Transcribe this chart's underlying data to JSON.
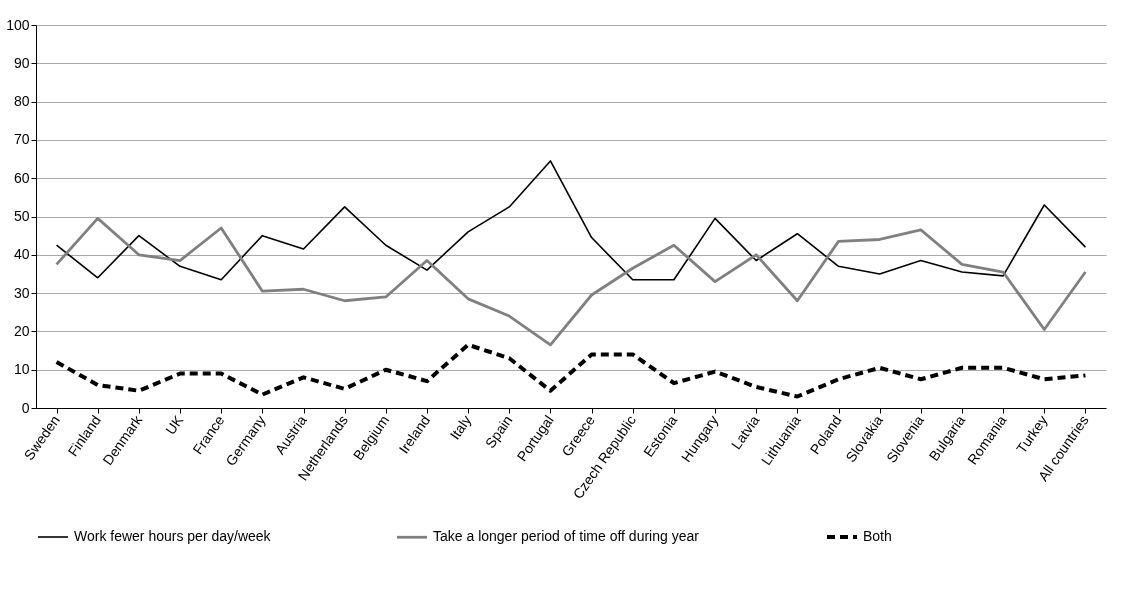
{
  "chart_data": {
    "type": "line",
    "categories": [
      "Sweden",
      "Finland",
      "Denmark",
      "UK",
      "France",
      "Germany",
      "Austria",
      "Netherlands",
      "Belgium",
      "Ireland",
      "Italy",
      "Spain",
      "Portugal",
      "Greece",
      "Czech Republic",
      "Estonia",
      "Hungary",
      "Latvia",
      "Lithuania",
      "Poland",
      "Slovakia",
      "Slovenia",
      "Bulgaria",
      "Romania",
      "Turkey",
      "All countries"
    ],
    "series": [
      {
        "name": "Work fewer hours per day/week",
        "color": "#000000",
        "line_style": "solid",
        "values": [
          42.5,
          34,
          45,
          37,
          33.5,
          45,
          41.5,
          52.5,
          42.5,
          36,
          46,
          52.5,
          64.5,
          44.5,
          33.5,
          33.5,
          49.5,
          38.5,
          45.5,
          37,
          35,
          38.5,
          35.5,
          34.5,
          53,
          42
        ]
      },
      {
        "name": "Take a longer period of time off during year",
        "color": "#808080",
        "line_style": "solid",
        "values": [
          37.5,
          49.5,
          40,
          38.5,
          47,
          30.5,
          31,
          28,
          29,
          38.5,
          28.5,
          24,
          16.5,
          29.5,
          36.5,
          42.5,
          33,
          40,
          28,
          43.5,
          44,
          46.5,
          37.5,
          35.5,
          20.5,
          35.5
        ]
      },
      {
        "name": "Both",
        "color": "#000000",
        "line_style": "dashed",
        "values": [
          12,
          6,
          4.5,
          9,
          9,
          3.5,
          8,
          5,
          10,
          7,
          16.5,
          13,
          4.5,
          14,
          14,
          6.5,
          9.5,
          5.5,
          3,
          7.5,
          10.5,
          7.5,
          10.5,
          10.5,
          7.5,
          8.5
        ]
      }
    ],
    "ylim": [
      0,
      100
    ],
    "yticks": [
      0,
      10,
      20,
      30,
      40,
      50,
      60,
      70,
      80,
      90,
      100
    ],
    "grid": "y",
    "legend": "bottom"
  }
}
